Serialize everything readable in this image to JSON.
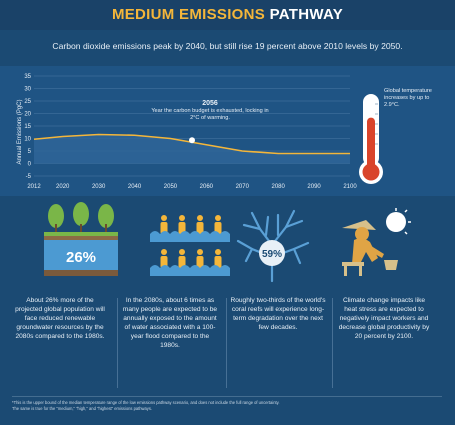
{
  "header": {
    "title_part1": "MEDIUM EMISSIONS",
    "title_part2": "PATHWAY",
    "subtitle": "Carbon dioxide emissions peak by 2040, but still rise 19 percent above 2010 levels by 2050."
  },
  "colors": {
    "background": "#1b4a73",
    "accent": "#f4b63a",
    "thermometer_red": "#d9442b",
    "coral": "#5aa0d6",
    "figure_orange": "#e0a445"
  },
  "chart_data": {
    "type": "area",
    "ylabel": "Annual Emissions (PgC)",
    "xlabel": "",
    "x": [
      2012,
      2020,
      2030,
      2040,
      2050,
      2060,
      2070,
      2080,
      2090,
      2100
    ],
    "series": [
      {
        "values": [
          9.7,
          10.8,
          11.6,
          11.3,
          10.0,
          7.5,
          5.0,
          4.0,
          4.0,
          4.0
        ]
      }
    ],
    "ylim": [
      -5,
      35
    ],
    "yticks": [
      35,
      30,
      25,
      20,
      15,
      10,
      5,
      0,
      -5
    ],
    "xticks": [
      2012,
      2020,
      2030,
      2040,
      2050,
      2060,
      2070,
      2080,
      2090,
      2100
    ],
    "annotation": {
      "x": 2056,
      "y": 9.3,
      "year": "2056",
      "text": "Year the carbon budget is exhausted, locking in 2°C of warming."
    },
    "grid": true
  },
  "thermometer": {
    "text": "Global temperature increases by up to 2.9°C.",
    "level": 0.72
  },
  "facts": [
    {
      "badge": "26%",
      "text": "About 26% more of the projected global population will face reduced renewable groundwater resources by the 2080s compared to the 1980s."
    },
    {
      "text": "In the 2080s, about 6 times as many people are expected to be annually exposed to the amount of water associated with a 100-year flood compared to the 1980s."
    },
    {
      "badge": "59%",
      "text": "Roughly two-thirds of the world's coral reefs will experience long-term degradation over the next few decades."
    },
    {
      "text": "Climate change impacts like heat stress are expected to negatively impact workers and decrease global productivity by 20 percent by 2100."
    }
  ],
  "footnote": {
    "line1": "*This is the upper bound of the median temperature range of the low emissions pathway scenario, and does not include the full range of uncertainty.",
    "line2": "The same is true for the \"medium,\" \"high,\" and \"highest\" emissions pathways."
  }
}
